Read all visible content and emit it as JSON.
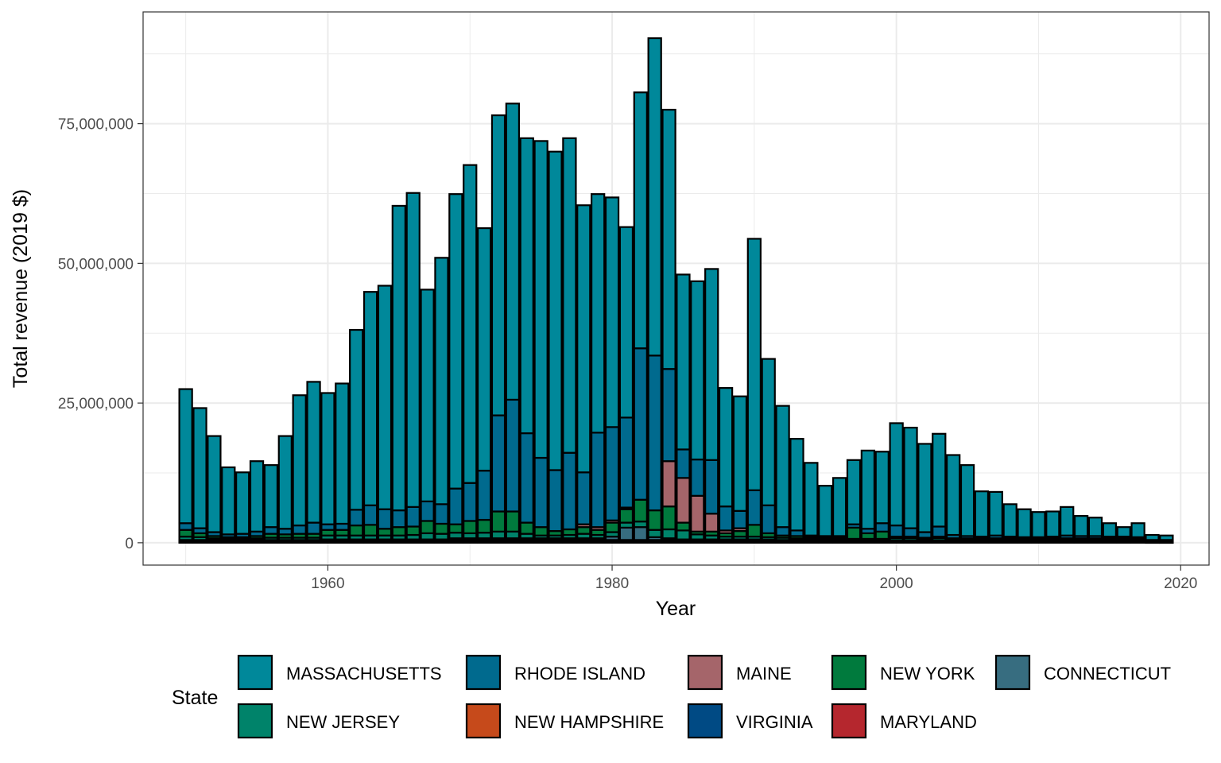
{
  "chart_data": {
    "type": "bar",
    "stacked": true,
    "xlabel": "Year",
    "ylabel": "Total revenue (2019 $)",
    "xlim": [
      1947,
      2022
    ],
    "ylim": [
      -4000000,
      95000000
    ],
    "x_ticks": [
      1960,
      1980,
      2000,
      2020
    ],
    "y_ticks": [
      0,
      25000000,
      50000000,
      75000000
    ],
    "y_tick_labels": [
      "0",
      "25,000,000",
      "50,000,000",
      "75,000,000"
    ],
    "grid": true,
    "legend": {
      "title": "State",
      "position": "bottom",
      "order": [
        "MASSACHUSETTS",
        "RHODE ISLAND",
        "MAINE",
        "NEW YORK",
        "CONNECTICUT",
        "NEW JERSEY",
        "NEW HAMPSHIRE",
        "VIRGINIA",
        "MARYLAND"
      ]
    },
    "colors": {
      "MASSACHUSETTS": "#00889A",
      "RHODE ISLAND": "#006A8E",
      "MAINE": "#A5656A",
      "NEW YORK": "#007A3D",
      "CONNECTICUT": "#376D80",
      "NEW JERSEY": "#00836A",
      "NEW HAMPSHIRE": "#C64A1B",
      "VIRGINIA": "#004A84",
      "MARYLAND": "#B5272E"
    },
    "stack_order": [
      "MASSACHUSETTS",
      "RHODE ISLAND",
      "MAINE",
      "NEW YORK",
      "NEW JERSEY",
      "CONNECTICUT",
      "NEW HAMPSHIRE",
      "VIRGINIA",
      "MARYLAND"
    ],
    "categories": [
      1950,
      1951,
      1952,
      1953,
      1954,
      1955,
      1956,
      1957,
      1958,
      1959,
      1960,
      1961,
      1962,
      1963,
      1964,
      1965,
      1966,
      1967,
      1968,
      1969,
      1970,
      1971,
      1972,
      1973,
      1974,
      1975,
      1976,
      1977,
      1978,
      1979,
      1980,
      1981,
      1982,
      1983,
      1984,
      1985,
      1986,
      1987,
      1988,
      1989,
      1990,
      1991,
      1992,
      1993,
      1994,
      1995,
      1996,
      1997,
      1998,
      1999,
      2000,
      2001,
      2002,
      2003,
      2004,
      2005,
      2006,
      2007,
      2008,
      2009,
      2010,
      2011,
      2012,
      2013,
      2014,
      2015,
      2016,
      2017,
      2018,
      2019
    ],
    "series": [
      {
        "name": "MASSACHUSETTS",
        "values": [
          24000000,
          21500000,
          17200000,
          12000000,
          11000000,
          12600000,
          11100000,
          16600000,
          23300000,
          25200000,
          23500000,
          25100000,
          32200000,
          38200000,
          40000000,
          54500000,
          56200000,
          37900000,
          44100000,
          52700000,
          56900000,
          43400000,
          53700000,
          53000000,
          52800000,
          56700000,
          57000000,
          56300000,
          47800000,
          42700000,
          41100000,
          34100000,
          45800000,
          56800000,
          46400000,
          31300000,
          31900000,
          34200000,
          21200000,
          20500000,
          45000000,
          26200000,
          21700000,
          16400000,
          13000000,
          9000000,
          10400000,
          11500000,
          14000000,
          12800000,
          18300000,
          18000000,
          15800000,
          16600000,
          14300000,
          12700000,
          8100000,
          7800000,
          5800000,
          5000000,
          4500000,
          4500000,
          5100000,
          3600000,
          3300000,
          2400000,
          1700000,
          2500000,
          900000,
          800000
        ]
      },
      {
        "name": "RHODE ISLAND",
        "values": [
          1200000,
          900000,
          700000,
          500000,
          600000,
          800000,
          1200000,
          1000000,
          1500000,
          2000000,
          1000000,
          1100000,
          2800000,
          3500000,
          3500000,
          3000000,
          3500000,
          3500000,
          3500000,
          6400000,
          6800000,
          8800000,
          17200000,
          20000000,
          16000000,
          12400000,
          10900000,
          13700000,
          9300000,
          16900000,
          16700000,
          16100000,
          27100000,
          27700000,
          16500000,
          5100000,
          6500000,
          9600000,
          4300000,
          3100000,
          6200000,
          5000000,
          1500000,
          1000000,
          300000,
          300000,
          300000,
          600000,
          800000,
          1500000,
          2000000,
          1500000,
          1000000,
          1800000,
          600000,
          400000,
          300000,
          500000,
          300000,
          200000,
          200000,
          300000,
          500000,
          400000,
          400000,
          300000,
          300000,
          200000,
          100000,
          100000
        ]
      },
      {
        "name": "MAINE",
        "values": [
          0,
          0,
          0,
          0,
          0,
          0,
          0,
          0,
          0,
          0,
          0,
          0,
          0,
          0,
          0,
          0,
          0,
          0,
          0,
          0,
          0,
          0,
          0,
          0,
          0,
          0,
          0,
          0,
          500000,
          500000,
          400000,
          300000,
          0,
          0,
          8100000,
          8000000,
          6400000,
          3200000,
          500000,
          500000,
          0,
          0,
          0,
          0,
          0,
          0,
          0,
          0,
          0,
          0,
          0,
          0,
          0,
          0,
          0,
          0,
          0,
          0,
          0,
          0,
          0,
          0,
          0,
          0,
          0,
          0,
          0,
          0,
          0,
          0
        ]
      },
      {
        "name": "NEW YORK",
        "values": [
          1200000,
          700000,
          400000,
          300000,
          300000,
          400000,
          700000,
          600000,
          700000,
          700000,
          1000000,
          1000000,
          1800000,
          1900000,
          1200000,
          1500000,
          1500000,
          2200000,
          1800000,
          1500000,
          2200000,
          2300000,
          3600000,
          3600000,
          2000000,
          1500000,
          800000,
          1000000,
          1200000,
          900000,
          1700000,
          2400000,
          3900000,
          3500000,
          4100000,
          1400000,
          500000,
          700000,
          600000,
          1000000,
          2100000,
          700000,
          400000,
          400000,
          300000,
          200000,
          200000,
          2000000,
          1000000,
          1300000,
          300000,
          300000,
          200000,
          300000,
          200000,
          200000,
          200000,
          200000,
          200000,
          200000,
          200000,
          200000,
          200000,
          200000,
          200000,
          200000,
          200000,
          200000,
          100000,
          100000
        ]
      },
      {
        "name": "NEW JERSEY",
        "values": [
          600000,
          500000,
          300000,
          200000,
          200000,
          300000,
          400000,
          400000,
          400000,
          400000,
          700000,
          700000,
          700000,
          700000,
          700000,
          700000,
          800000,
          1100000,
          1000000,
          1000000,
          900000,
          1000000,
          1200000,
          1200000,
          800000,
          500000,
          500000,
          600000,
          800000,
          600000,
          800000,
          900000,
          1000000,
          1300000,
          1600000,
          1600000,
          900000,
          700000,
          500000,
          500000,
          500000,
          400000,
          400000,
          300000,
          300000,
          300000,
          300000,
          300000,
          300000,
          300000,
          400000,
          400000,
          300000,
          400000,
          200000,
          200000,
          200000,
          200000,
          200000,
          200000,
          200000,
          200000,
          200000,
          200000,
          200000,
          200000,
          200000,
          200000,
          100000,
          100000
        ]
      },
      {
        "name": "CONNECTICUT",
        "values": [
          200000,
          200000,
          200000,
          200000,
          200000,
          200000,
          200000,
          200000,
          200000,
          200000,
          300000,
          300000,
          300000,
          300000,
          300000,
          300000,
          300000,
          300000,
          300000,
          300000,
          300000,
          300000,
          300000,
          300000,
          300000,
          300000,
          300000,
          300000,
          300000,
          300000,
          600000,
          2200000,
          2300000,
          500000,
          300000,
          200000,
          200000,
          200000,
          200000,
          200000,
          200000,
          200000,
          200000,
          200000,
          100000,
          100000,
          100000,
          100000,
          100000,
          100000,
          100000,
          100000,
          100000,
          100000,
          100000,
          100000,
          100000,
          100000,
          100000,
          100000,
          100000,
          100000,
          100000,
          100000,
          100000,
          100000,
          100000,
          100000,
          50000,
          50000
        ]
      },
      {
        "name": "NEW HAMPSHIRE",
        "values": [
          100000,
          100000,
          100000,
          100000,
          100000,
          100000,
          100000,
          100000,
          100000,
          100000,
          100000,
          100000,
          100000,
          100000,
          100000,
          100000,
          100000,
          100000,
          100000,
          200000,
          200000,
          200000,
          200000,
          200000,
          200000,
          200000,
          200000,
          200000,
          200000,
          200000,
          200000,
          200000,
          200000,
          200000,
          200000,
          100000,
          100000,
          100000,
          100000,
          100000,
          100000,
          100000,
          100000,
          100000,
          100000,
          100000,
          100000,
          100000,
          100000,
          100000,
          100000,
          100000,
          100000,
          100000,
          100000,
          100000,
          100000,
          100000,
          100000,
          100000,
          100000,
          100000,
          100000,
          100000,
          100000,
          100000,
          100000,
          100000,
          50000,
          50000
        ]
      },
      {
        "name": "VIRGINIA",
        "values": [
          100000,
          100000,
          100000,
          100000,
          100000,
          100000,
          100000,
          100000,
          100000,
          100000,
          100000,
          100000,
          100000,
          100000,
          100000,
          100000,
          100000,
          100000,
          100000,
          200000,
          200000,
          200000,
          200000,
          200000,
          200000,
          200000,
          200000,
          200000,
          200000,
          200000,
          200000,
          200000,
          200000,
          200000,
          200000,
          200000,
          200000,
          200000,
          200000,
          200000,
          200000,
          200000,
          100000,
          100000,
          100000,
          100000,
          100000,
          100000,
          100000,
          100000,
          100000,
          100000,
          100000,
          100000,
          100000,
          100000,
          100000,
          100000,
          100000,
          100000,
          100000,
          100000,
          100000,
          100000,
          100000,
          100000,
          100000,
          100000,
          50000,
          50000
        ]
      },
      {
        "name": "MARYLAND",
        "values": [
          100000,
          100000,
          100000,
          100000,
          100000,
          100000,
          100000,
          100000,
          100000,
          100000,
          100000,
          100000,
          100000,
          100000,
          100000,
          100000,
          100000,
          100000,
          100000,
          100000,
          100000,
          100000,
          100000,
          100000,
          100000,
          100000,
          100000,
          100000,
          100000,
          100000,
          100000,
          100000,
          100000,
          100000,
          100000,
          100000,
          100000,
          100000,
          100000,
          100000,
          100000,
          100000,
          100000,
          100000,
          100000,
          100000,
          100000,
          100000,
          100000,
          100000,
          100000,
          100000,
          100000,
          100000,
          100000,
          100000,
          100000,
          100000,
          100000,
          100000,
          100000,
          100000,
          100000,
          100000,
          100000,
          100000,
          100000,
          100000,
          50000,
          50000
        ]
      }
    ]
  }
}
